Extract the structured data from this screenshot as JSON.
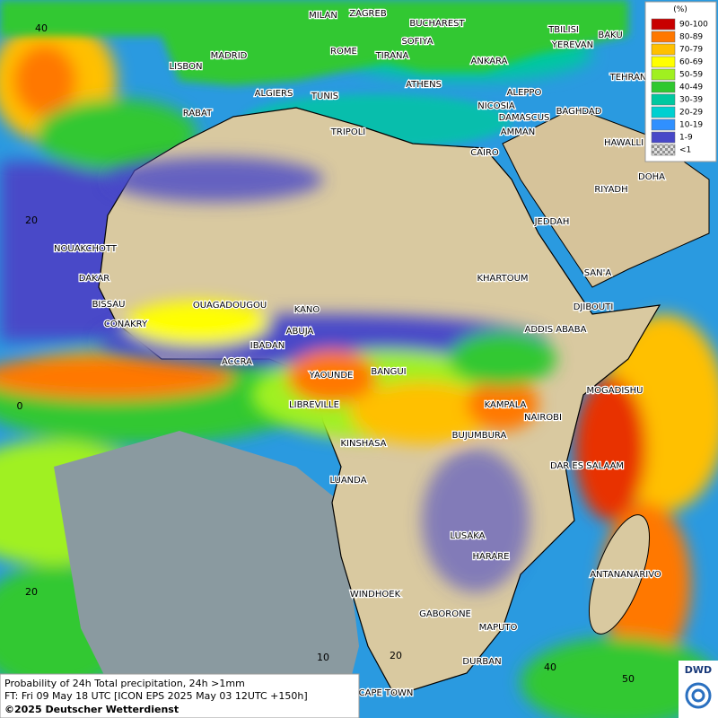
{
  "map": {
    "cities": [
      "MILAN",
      "ZAGREB",
      "BUCHAREST",
      "TBILISI",
      "BAKU",
      "MADRID",
      "ROME",
      "SOFIYA",
      "YEREVAN",
      "LISBON",
      "TIRANA",
      "ANKARA",
      "TEHRAN",
      "ALGIERS",
      "TUNIS",
      "ATHENS",
      "ALEPPO",
      "RABAT",
      "NICOSIA",
      "BAGHDAD",
      "DAMASCUS",
      "TRIPOLI",
      "AMMAN",
      "HAWALLI",
      "CAIRO",
      "DOHA",
      "RIYADH",
      "JEDDAH",
      "NOUAKCHOTT",
      "DAKAR",
      "KHARTOUM",
      "SAN'A",
      "BISSAU",
      "OUAGADOUGOU",
      "KANO",
      "DJIBOUTI",
      "CONAKRY",
      "ABUJA",
      "ADDIS ABABA",
      "IBADAN",
      "ACCRA",
      "YAOUNDE",
      "BANGUI",
      "MOGADISHU",
      "LIBREVILLE",
      "KAMPALA",
      "NAIROBI",
      "KINSHASA",
      "BUJUMBURA",
      "DAR ES SALAAM",
      "LUANDA",
      "LUSAKA",
      "HARARE",
      "ANTANANARIVO",
      "WINDHOEK",
      "GABORONE",
      "MAPUTO",
      "DURBAN",
      "CAPE TOWN"
    ],
    "grid_labels": [
      "40",
      "20",
      "0",
      "20",
      "10",
      "20",
      "40",
      "50"
    ]
  },
  "legend": {
    "title": "(%)",
    "items": [
      {
        "label": "90-100",
        "color": "#c80000"
      },
      {
        "label": "80-89",
        "color": "#ff7800"
      },
      {
        "label": "70-79",
        "color": "#ffc000"
      },
      {
        "label": "60-69",
        "color": "#ffff00"
      },
      {
        "label": "50-59",
        "color": "#a0f020"
      },
      {
        "label": "40-49",
        "color": "#30c830"
      },
      {
        "label": "30-39",
        "color": "#00c8a0"
      },
      {
        "label": "20-29",
        "color": "#00d0d0"
      },
      {
        "label": "10-19",
        "color": "#3090ff"
      },
      {
        "label": "1-9",
        "color": "#4848c8"
      },
      {
        "label": "<1",
        "color": "#b0b0b0"
      }
    ]
  },
  "footer": {
    "line1": "Probability of 24h Total precipitation, 24h >1mm",
    "line2": "FT: Fri 09 May 18 UTC [ICON EPS 2025 May 03 12UTC +150h]",
    "line3": "©2025 Deutscher Wetterdienst"
  },
  "logo": "DWD"
}
